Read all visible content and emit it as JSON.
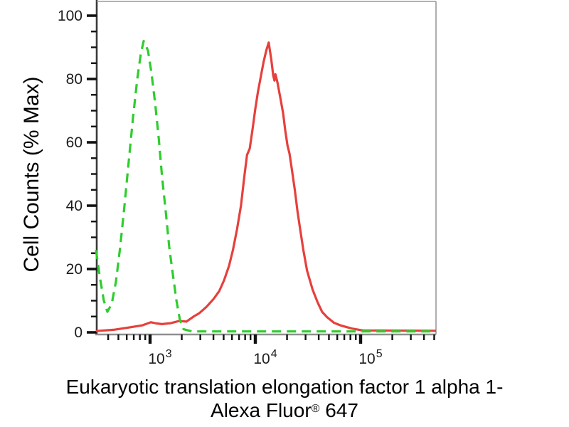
{
  "figure": {
    "y_axis_label": "Cell Counts (% Max)",
    "title_line1": "Eukaryotic translation elongation factor 1 alpha 1-",
    "title_line2_product": "Alexa Fluor",
    "title_line2_reg": "®",
    "title_line2_suffix": " 647",
    "background_color": "#ffffff"
  },
  "chart_data": {
    "type": "line",
    "subtype": "flow-cytometry-histogram-overlay",
    "title": "Eukaryotic translation elongation factor 1 alpha 1-Alexa Fluor® 647",
    "xlabel": "Eukaryotic translation elongation factor 1 alpha 1-Alexa Fluor® 647",
    "ylabel": "Cell Counts (% Max)",
    "x_scale": "log10",
    "x_range": [
      306,
      520000
    ],
    "ylim": [
      0,
      100
    ],
    "grid": false,
    "legend": "none",
    "y_major_ticks": [
      0,
      20,
      40,
      60,
      80,
      100
    ],
    "y_minor_tick_step": 5,
    "x_major_ticks": [
      1000,
      10000,
      100000
    ],
    "x_tick_base": "10",
    "x_tick_exponents": [
      "3",
      "4",
      "5"
    ],
    "axis_colors": {
      "left_spine": "#3a3a3a",
      "bottom_spine": "#8f8f8f",
      "top_spine": "#9a9a9a",
      "right_spine": "#9a9a9a",
      "ticks": "#111111"
    },
    "series": [
      {
        "name": "green dashed curve (unstained control)",
        "color": "#2ecd2e",
        "line_style": "dashed",
        "peak": {
          "x": 870,
          "y": 92
        },
        "points": [
          [
            306,
            26
          ],
          [
            335,
            17
          ],
          [
            364,
            10
          ],
          [
            393,
            6.5
          ],
          [
            432,
            9
          ],
          [
            474,
            16
          ],
          [
            520,
            27
          ],
          [
            571,
            40
          ],
          [
            627,
            54
          ],
          [
            689,
            68
          ],
          [
            756,
            80
          ],
          [
            817,
            88
          ],
          [
            870,
            92
          ],
          [
            955,
            89
          ],
          [
            1030,
            82
          ],
          [
            1120,
            72
          ],
          [
            1210,
            61
          ],
          [
            1300,
            49
          ],
          [
            1410,
            38
          ],
          [
            1520,
            27
          ],
          [
            1650,
            18
          ],
          [
            1780,
            10
          ],
          [
            1920,
            4
          ],
          [
            2080,
            1
          ],
          [
            2500,
            0.3
          ],
          [
            520000,
            0.3
          ]
        ]
      },
      {
        "name": "red solid curve (stained sample)",
        "color": "#e6403c",
        "line_style": "solid",
        "peak": {
          "x": 13400,
          "y": 91.5
        },
        "points": [
          [
            306,
            0.4
          ],
          [
            450,
            0.8
          ],
          [
            620,
            1.5
          ],
          [
            840,
            2.2
          ],
          [
            1020,
            3.2
          ],
          [
            1150,
            2.8
          ],
          [
            1300,
            2.6
          ],
          [
            1570,
            2.9
          ],
          [
            1890,
            3.6
          ],
          [
            2210,
            3.4
          ],
          [
            2590,
            5
          ],
          [
            2920,
            6
          ],
          [
            3420,
            8
          ],
          [
            4000,
            10.5
          ],
          [
            4540,
            13
          ],
          [
            5050,
            16.5
          ],
          [
            5620,
            21
          ],
          [
            6130,
            26
          ],
          [
            6690,
            32.5
          ],
          [
            7300,
            40
          ],
          [
            7850,
            49
          ],
          [
            8330,
            56
          ],
          [
            8850,
            58
          ],
          [
            9390,
            64
          ],
          [
            9980,
            70.5
          ],
          [
            10600,
            76
          ],
          [
            11300,
            81
          ],
          [
            12000,
            85.5
          ],
          [
            12700,
            89
          ],
          [
            13400,
            91.5
          ],
          [
            14200,
            86
          ],
          [
            14800,
            81
          ],
          [
            15200,
            79.5
          ],
          [
            15500,
            81.5
          ],
          [
            16200,
            79
          ],
          [
            17300,
            74
          ],
          [
            18400,
            69
          ],
          [
            19200,
            64
          ],
          [
            20200,
            59
          ],
          [
            21100,
            56.5
          ],
          [
            22100,
            52
          ],
          [
            23700,
            45
          ],
          [
            25200,
            38
          ],
          [
            26800,
            32
          ],
          [
            28600,
            26
          ],
          [
            31000,
            19.5
          ],
          [
            35000,
            13.5
          ],
          [
            39000,
            9.5
          ],
          [
            43000,
            6.5
          ],
          [
            48000,
            4.8
          ],
          [
            56000,
            3
          ],
          [
            66000,
            2.1
          ],
          [
            83000,
            1.2
          ],
          [
            105000,
            0.6
          ],
          [
            520000,
            0.5
          ]
        ]
      }
    ]
  }
}
